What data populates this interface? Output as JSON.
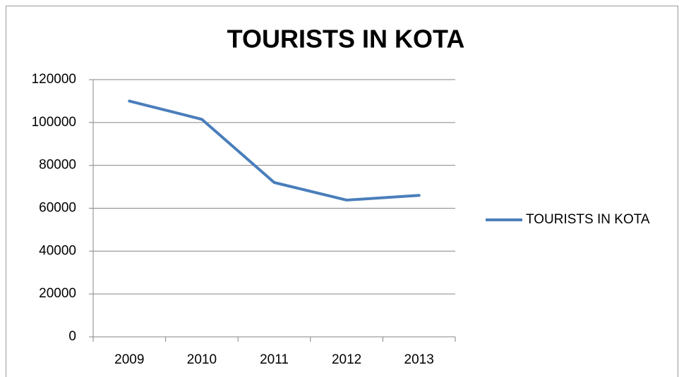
{
  "chart_data": {
    "type": "line",
    "title": "TOURISTS IN KOTA",
    "categories": [
      "2009",
      "2010",
      "2011",
      "2012",
      "2013"
    ],
    "series": [
      {
        "name": "TOURISTS IN KOTA",
        "color": "#4a7ebb",
        "values": [
          110000,
          101500,
          72000,
          63800,
          66000
        ]
      }
    ],
    "ylim": [
      0,
      120000
    ],
    "yticks": [
      0,
      20000,
      40000,
      60000,
      80000,
      100000,
      120000
    ],
    "grid": true,
    "legend": "right"
  }
}
